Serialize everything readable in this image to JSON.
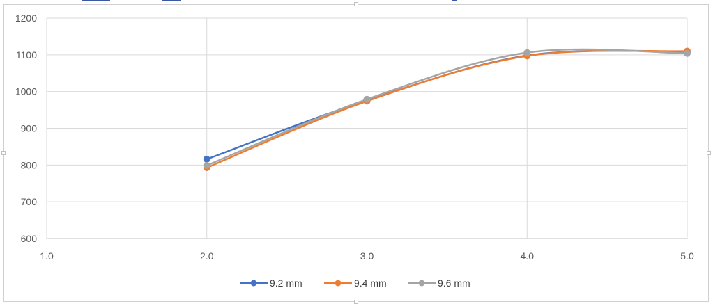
{
  "chart_data": {
    "type": "line",
    "smooth": true,
    "xlim": [
      1.0,
      5.0
    ],
    "ylim": [
      600,
      1200
    ],
    "x_ticks": [
      "1.0",
      "2.0",
      "3.0",
      "4.0",
      "5.0"
    ],
    "y_ticks": [
      "600",
      "700",
      "800",
      "900",
      "1000",
      "1100",
      "1200"
    ],
    "grid": true,
    "legend_position": "bottom",
    "series": [
      {
        "name": "9.2 mm",
        "color": "#4472C4",
        "x": [
          2.0,
          3.0,
          4.0,
          5.0
        ],
        "y": [
          816,
          976,
          1098,
          1109
        ]
      },
      {
        "name": "9.4 mm",
        "color": "#ED7D31",
        "x": [
          2.0,
          3.0,
          4.0,
          5.0
        ],
        "y": [
          793,
          974,
          1097,
          1110
        ]
      },
      {
        "name": "9.6 mm",
        "color": "#A5A5A5",
        "x": [
          2.0,
          3.0,
          4.0,
          5.0
        ],
        "y": [
          799,
          979,
          1106,
          1104
        ]
      }
    ]
  }
}
